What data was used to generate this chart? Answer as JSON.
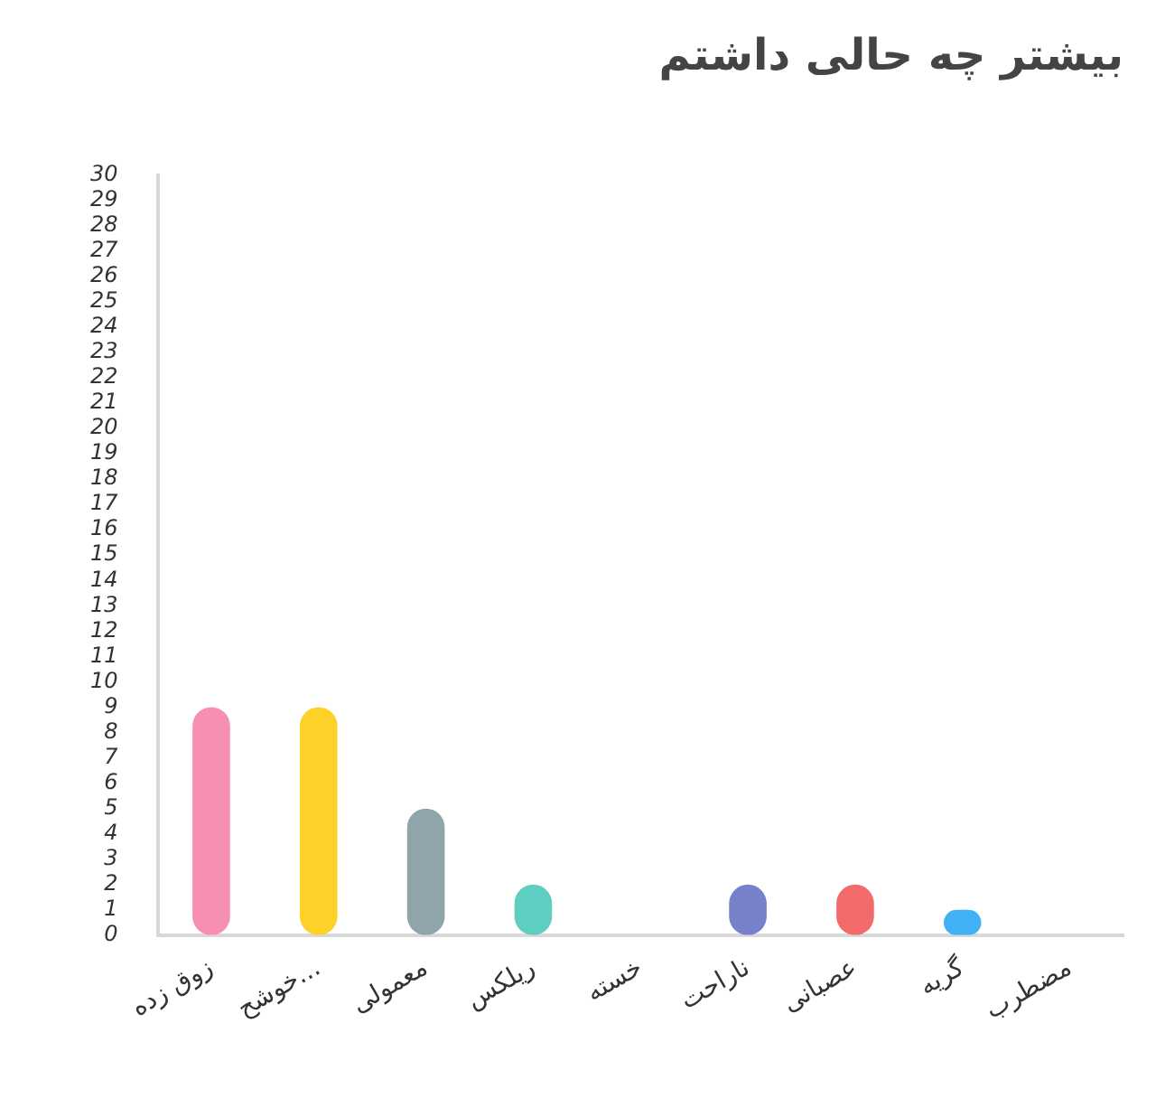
{
  "chart_data": {
    "type": "bar",
    "title": "بیشتر چه حالی داشتم",
    "categories": [
      "زوق زده",
      "خوشح...",
      "معمولی",
      "ریلکس",
      "خسته",
      "ناراحت",
      "عصبانی",
      "گریه",
      "مضطرب"
    ],
    "values": [
      9,
      9,
      5,
      2,
      0,
      2,
      2,
      1,
      0
    ],
    "colors": [
      "#f78fb3",
      "#fdd128",
      "#8fa5aa",
      "#5ecec1",
      "#b0b0b0",
      "#7681c9",
      "#f26a6a",
      "#42b0f5",
      "#c0a0e0"
    ],
    "ylim": [
      0,
      30
    ],
    "yticks": [
      0,
      1,
      2,
      3,
      4,
      5,
      6,
      7,
      8,
      9,
      10,
      11,
      12,
      13,
      14,
      15,
      16,
      17,
      18,
      19,
      20,
      21,
      22,
      23,
      24,
      25,
      26,
      27,
      28,
      29,
      30
    ],
    "grid": false,
    "legend": false
  }
}
